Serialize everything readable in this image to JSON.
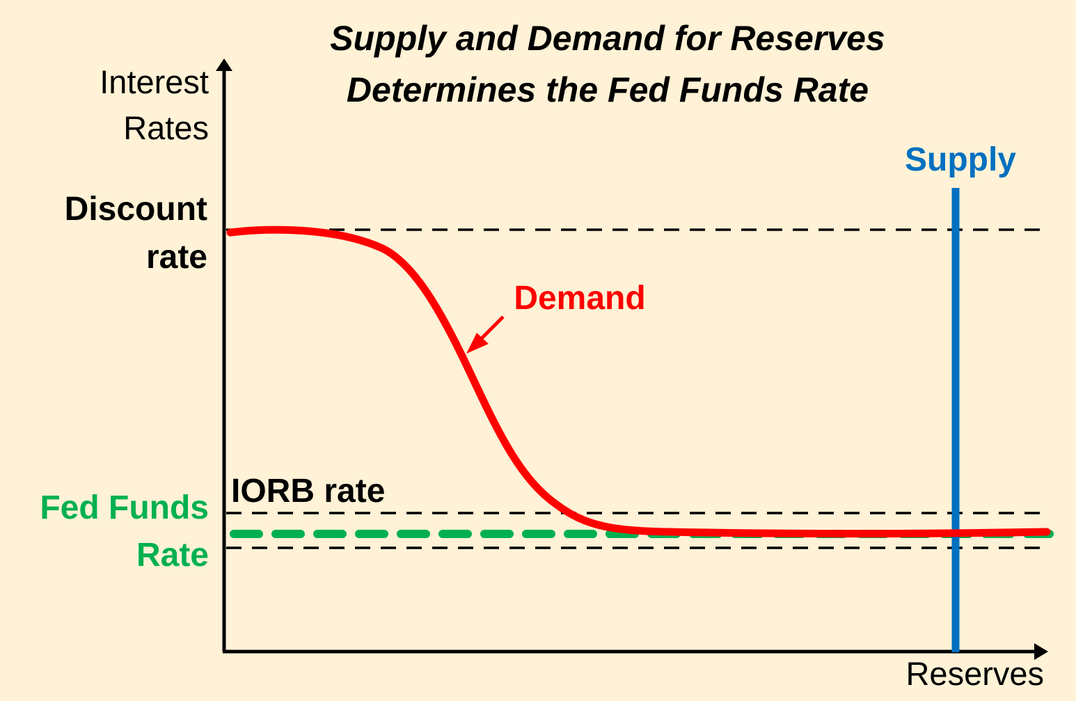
{
  "title": {
    "line1": "Supply and Demand for Reserves",
    "line2": "Determines the Fed Funds Rate"
  },
  "y_axis": {
    "label_line1": "Interest",
    "label_line2": "Rates"
  },
  "x_axis": {
    "label": "Reserves"
  },
  "levels": {
    "discount_rate": {
      "label_line1": "Discount",
      "label_line2": "rate"
    },
    "iorb_rate": {
      "label": "IORB rate"
    },
    "fed_funds_rate": {
      "label_line1": "Fed Funds",
      "label_line2": "Rate"
    }
  },
  "curves": {
    "demand": {
      "label": "Demand"
    },
    "supply": {
      "label": "Supply"
    }
  },
  "colors": {
    "background": "#FFF2D6",
    "demand": "#FF0000",
    "supply": "#0070C0",
    "fed_funds": "#00B050",
    "axis": "#000000",
    "reference_lines": "#000000"
  }
}
